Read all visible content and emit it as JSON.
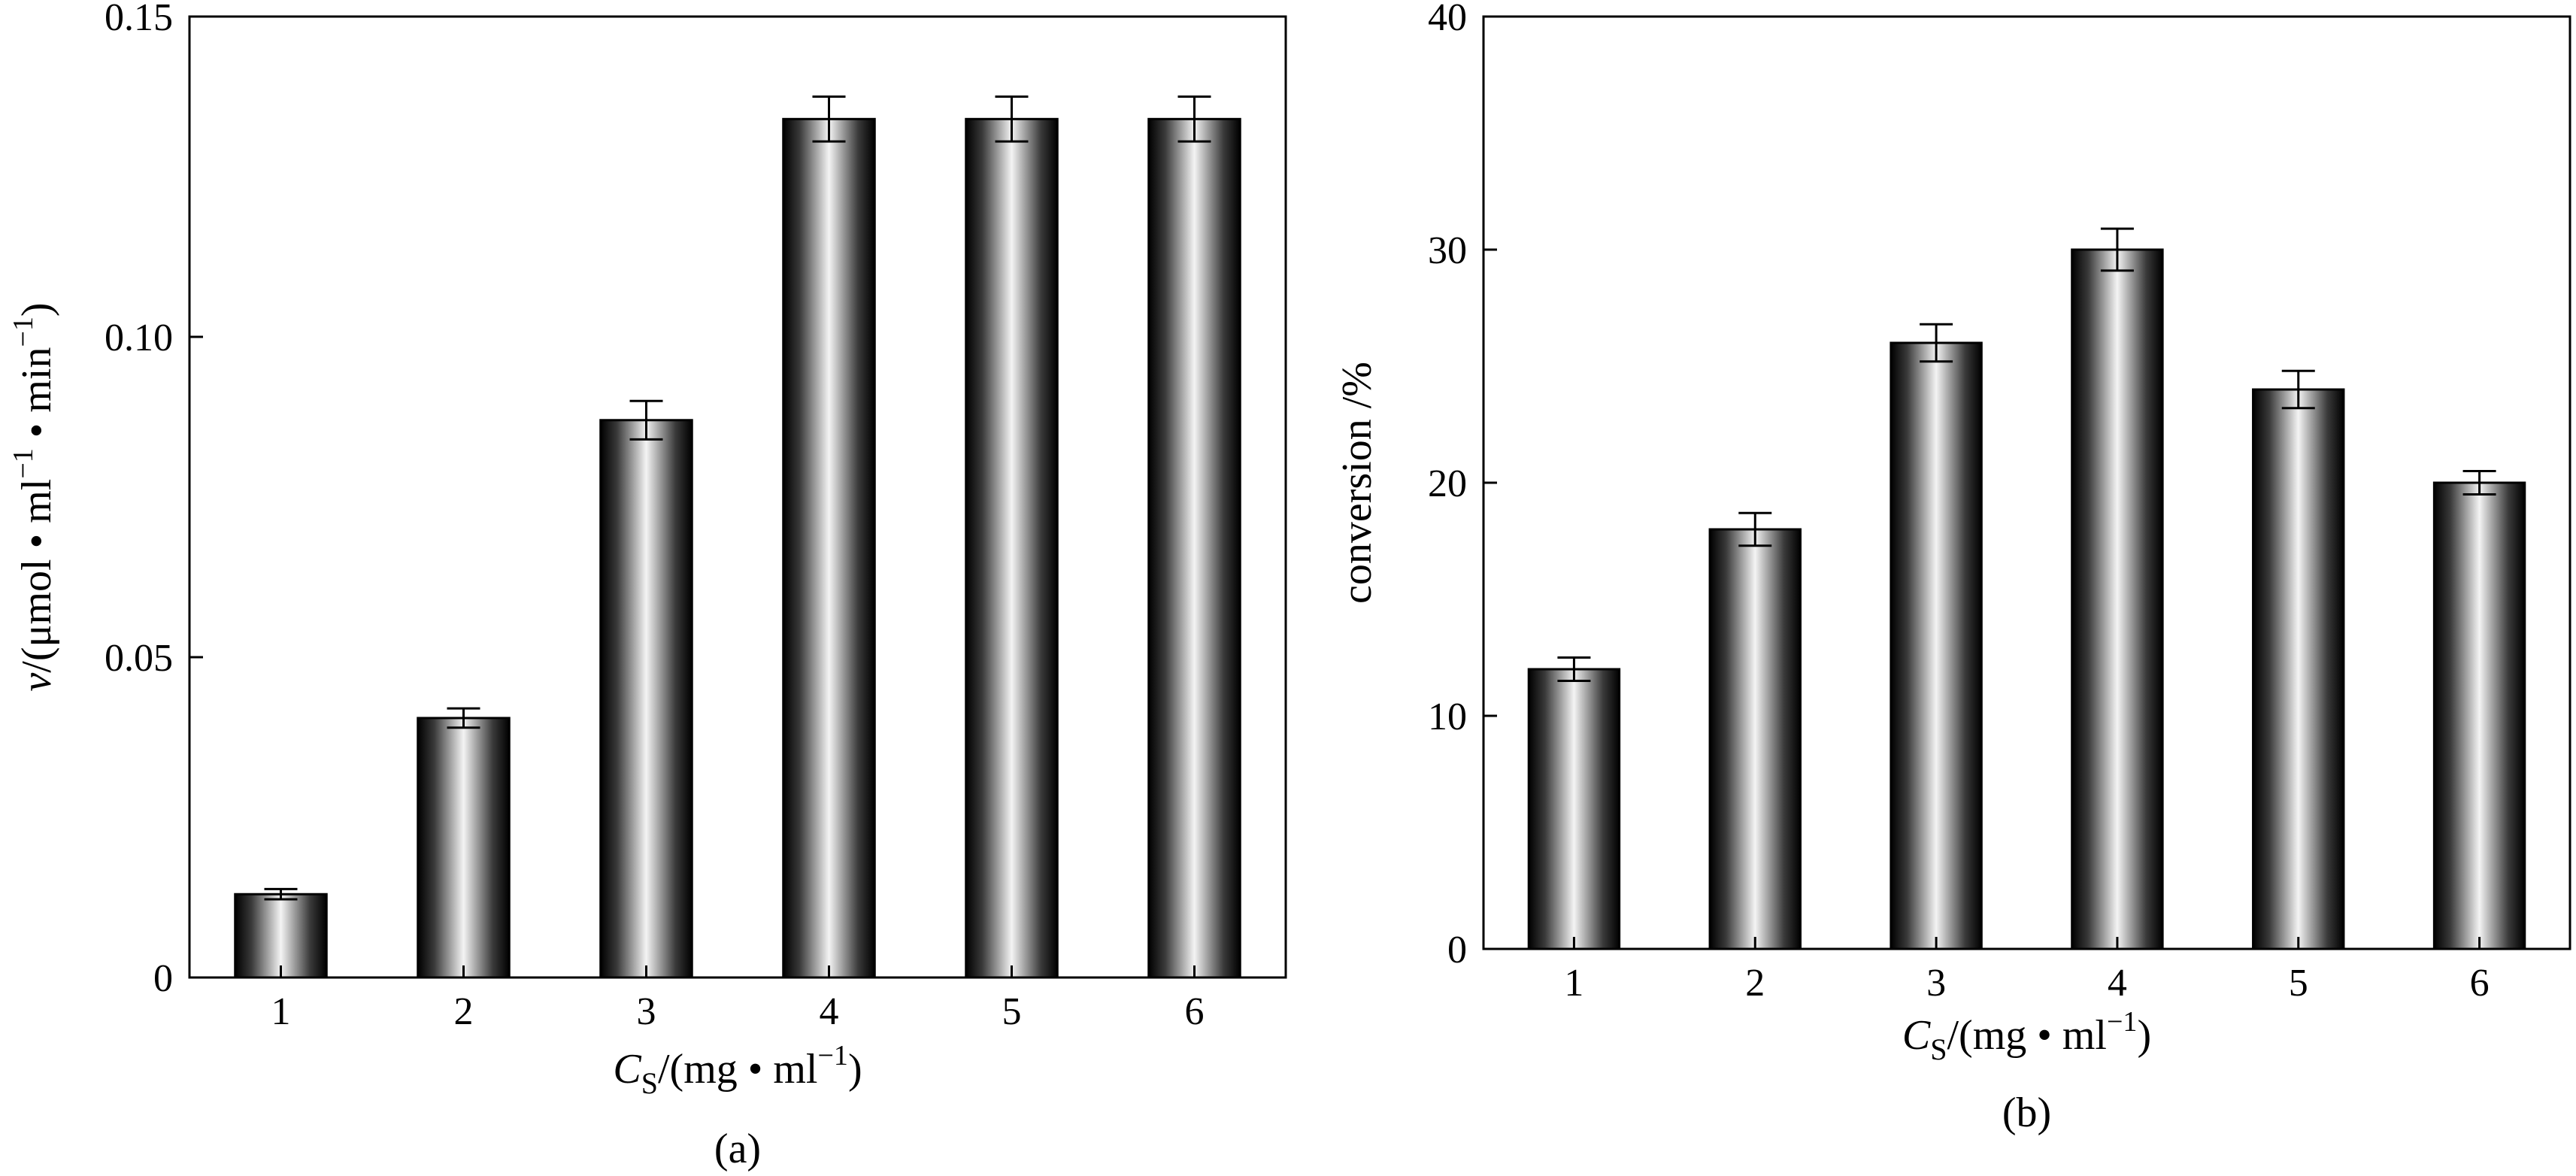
{
  "chart_data": [
    {
      "type": "bar",
      "panel_label": "(a)",
      "categories": [
        "1",
        "2",
        "3",
        "4",
        "5",
        "6"
      ],
      "values": [
        0.013,
        0.0405,
        0.087,
        0.134,
        0.134,
        0.134
      ],
      "errors": [
        0.0008,
        0.0015,
        0.003,
        0.0035,
        0.0035,
        0.0035
      ],
      "xlabel": {
        "var": "C",
        "sub": "S",
        "rest": "/(mg • ml",
        "sup": "−1",
        "close": ")"
      },
      "ylabel": {
        "var": "v",
        "text": "/(μmol • ml",
        "sup1": "−1",
        "mid": " • min",
        "sup2": "−1",
        "close": ")"
      },
      "ylim": [
        0,
        0.15
      ],
      "yticks": [
        0,
        0.05,
        0.1,
        0.15
      ],
      "ytick_labels": [
        "0",
        "0.05",
        "0.10",
        "0.15"
      ],
      "grid": false,
      "legend": "none",
      "bar_style": "metallic-gradient"
    },
    {
      "type": "bar",
      "panel_label": "(b)",
      "categories": [
        "1",
        "2",
        "3",
        "4",
        "5",
        "6"
      ],
      "values": [
        12,
        18,
        26,
        30,
        24,
        20
      ],
      "errors": [
        0.5,
        0.7,
        0.8,
        0.9,
        0.8,
        0.5
      ],
      "xlabel": {
        "var": "C",
        "sub": "S",
        "rest": "/(mg • ml",
        "sup": "−1",
        "close": ")"
      },
      "ylabel": {
        "text": "conversion /%"
      },
      "ylim": [
        0,
        40
      ],
      "yticks": [
        0,
        10,
        20,
        30,
        40
      ],
      "ytick_labels": [
        "0",
        "10",
        "20",
        "30",
        "40"
      ],
      "grid": false,
      "legend": "none",
      "bar_style": "metallic-gradient"
    }
  ]
}
